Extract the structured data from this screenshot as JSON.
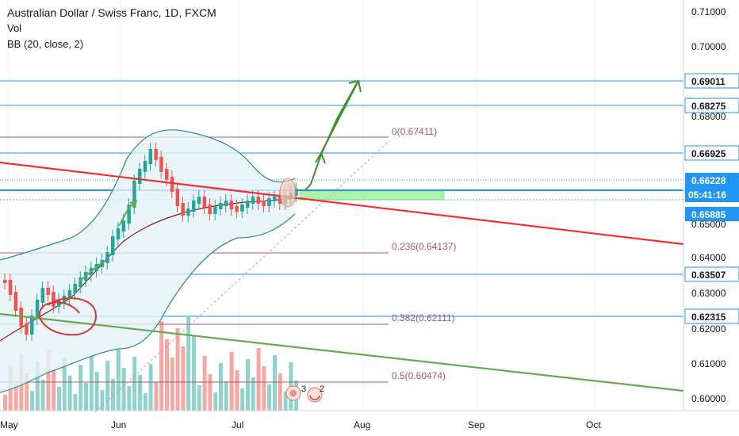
{
  "header": {
    "title": "Australian Dollar / Swiss Franc, 1D, FXCM",
    "volume_label": "Vol",
    "bb_label": "BB (20, close, 2)"
  },
  "price_axis": {
    "ticks": [
      "0.71000",
      "0.70000",
      "0.68000",
      "0.65000",
      "0.64000",
      "0.63000",
      "0.62000",
      "0.61000",
      "0.60000"
    ]
  },
  "time_axis": {
    "labels": [
      "May",
      "Jun",
      "Jul",
      "Aug",
      "Sep",
      "Oct"
    ]
  },
  "horizontal_levels": [
    {
      "label": "0.69011"
    },
    {
      "label": "0.68275"
    },
    {
      "label": "0.66925"
    },
    {
      "label": "0.63507"
    },
    {
      "label": "0.62315"
    }
  ],
  "price_badges": {
    "last_price": "0.66228",
    "countdown": "05:41:16",
    "level": "0.65885"
  },
  "fibonacci": [
    {
      "label": "0(0.67411)"
    },
    {
      "label": "0.236(0.64137)"
    },
    {
      "label": "0.382(0.62111)"
    },
    {
      "label": "0.5(0.60474)"
    }
  ],
  "annotations": {
    "idea_count": "3",
    "comment_count": "2"
  },
  "colors": {
    "up_candle": "#26a69a",
    "down_candle": "#ef5350",
    "up_volume": "#8fd3cc",
    "down_volume": "#f5a7a4",
    "blue_level": "#2196f3",
    "fib_line": "#a8586e",
    "trendline_red": "#f23030",
    "trendline_green": "#6aa84f",
    "arrow_green": "#3f8f2a",
    "bollinger": "#2c8c8a",
    "basis": "#8b1a1a",
    "highlight_zone": "#90ee90"
  }
}
